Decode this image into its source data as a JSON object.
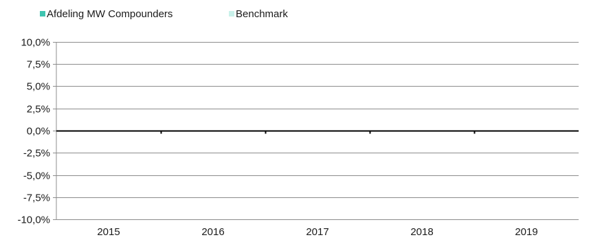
{
  "chart_data": {
    "type": "bar",
    "title": "",
    "xlabel": "",
    "ylabel": "",
    "categories": [
      "2015",
      "2016",
      "2017",
      "2018",
      "2019"
    ],
    "series": [
      {
        "name": "Afdeling MW Compounders",
        "color": "#3fc4b0",
        "values": [
          0,
          0,
          0,
          0,
          0
        ]
      },
      {
        "name": "Benchmark",
        "color": "#c9f1ea",
        "values": [
          0,
          0,
          0,
          0,
          0
        ]
      }
    ],
    "ylim": [
      -0.1,
      0.1
    ],
    "yticks": [
      0.1,
      0.075,
      0.05,
      0.025,
      0.0,
      -0.025,
      -0.05,
      -0.075,
      -0.1
    ],
    "ytick_labels": [
      "10,0%",
      "7,5%",
      "5,0%",
      "2,5%",
      "0,0%",
      "-2,5%",
      "-5,0%",
      "-7,5%",
      "-10,0%"
    ],
    "grid": true,
    "legend_position": "top-left",
    "colors": {
      "gridline": "#8c8c8c",
      "zero_line": "#000000",
      "text": "#1a1a1a"
    }
  }
}
